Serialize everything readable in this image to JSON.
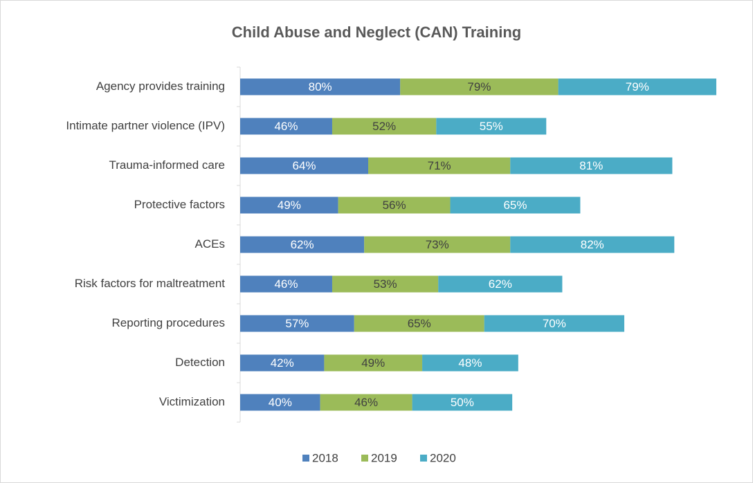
{
  "chart_data": {
    "type": "stacked_barh",
    "title": "Child Abuse and Neglect (CAN) Training",
    "categories": [
      "Agency provides training",
      "Intimate partner violence (IPV)",
      "Trauma-informed care",
      "Protective factors",
      "ACEs",
      "Risk factors for maltreatment",
      "Reporting procedures",
      "Detection",
      "Victimization"
    ],
    "series": [
      {
        "name": "2018",
        "color": "#4f81bd",
        "label_color": "#ffffff",
        "values": [
          80,
          46,
          64,
          49,
          62,
          46,
          57,
          42,
          40
        ],
        "value_labels": [
          "80%",
          "46%",
          "64%",
          "49%",
          "62%",
          "46%",
          "57%",
          "42%",
          "40%"
        ]
      },
      {
        "name": "2019",
        "color": "#9bbb59",
        "label_color": "#404040",
        "values": [
          79,
          52,
          71,
          56,
          73,
          53,
          65,
          49,
          46
        ],
        "value_labels": [
          "79%",
          "52%",
          "71%",
          "56%",
          "73%",
          "53%",
          "65%",
          "49%",
          "46%"
        ]
      },
      {
        "name": "2020",
        "color": "#4bacc6",
        "label_color": "#ffffff",
        "values": [
          79,
          55,
          81,
          65,
          82,
          62,
          70,
          48,
          50
        ],
        "value_labels": [
          "79%",
          "55%",
          "81%",
          "65%",
          "82%",
          "62%",
          "70%",
          "48%",
          "50%"
        ]
      }
    ],
    "xlim": [
      0,
      238
    ],
    "legend": "bottom"
  }
}
